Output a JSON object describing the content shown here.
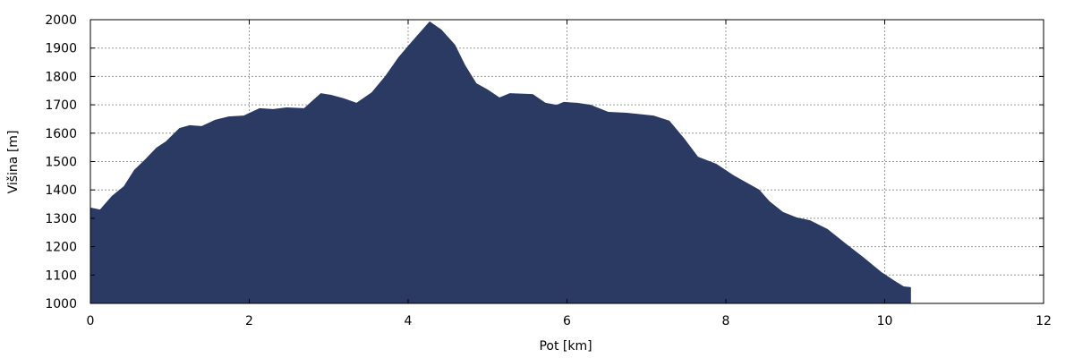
{
  "chart_data": {
    "type": "area",
    "title": "",
    "xlabel": "Pot [km]",
    "ylabel": "Višina [m]",
    "xlim": [
      0,
      12
    ],
    "ylim": [
      1000,
      2000
    ],
    "xticks": [
      "0",
      "2",
      "4",
      "6",
      "8",
      "10",
      "12"
    ],
    "yticks": [
      "1000",
      "1100",
      "1200",
      "1300",
      "1400",
      "1500",
      "1600",
      "1700",
      "1800",
      "1900",
      "2000"
    ],
    "grid": true,
    "fill_color": "#2b3a63",
    "x": [
      0.0,
      0.12,
      0.27,
      0.42,
      0.55,
      0.69,
      0.83,
      0.95,
      1.12,
      1.25,
      1.4,
      1.57,
      1.74,
      1.93,
      2.13,
      2.3,
      2.47,
      2.69,
      2.9,
      3.03,
      3.2,
      3.35,
      3.54,
      3.71,
      3.88,
      4.05,
      4.27,
      4.42,
      4.59,
      4.72,
      4.86,
      5.0,
      5.15,
      5.28,
      5.57,
      5.73,
      5.87,
      5.96,
      6.13,
      6.3,
      6.52,
      6.75,
      7.09,
      7.29,
      7.48,
      7.65,
      7.88,
      8.1,
      8.42,
      8.55,
      8.72,
      8.89,
      9.06,
      9.28,
      9.51,
      9.74,
      9.96,
      10.13,
      10.24,
      10.33
    ],
    "y": [
      1338,
      1331,
      1379,
      1413,
      1470,
      1508,
      1549,
      1571,
      1618,
      1628,
      1625,
      1647,
      1659,
      1662,
      1688,
      1685,
      1691,
      1688,
      1741,
      1735,
      1722,
      1707,
      1744,
      1801,
      1868,
      1924,
      1994,
      1965,
      1912,
      1839,
      1776,
      1754,
      1726,
      1741,
      1738,
      1707,
      1700,
      1710,
      1707,
      1700,
      1675,
      1672,
      1662,
      1644,
      1580,
      1517,
      1492,
      1451,
      1401,
      1360,
      1322,
      1303,
      1293,
      1262,
      1211,
      1161,
      1110,
      1079,
      1060,
      1057
    ]
  }
}
